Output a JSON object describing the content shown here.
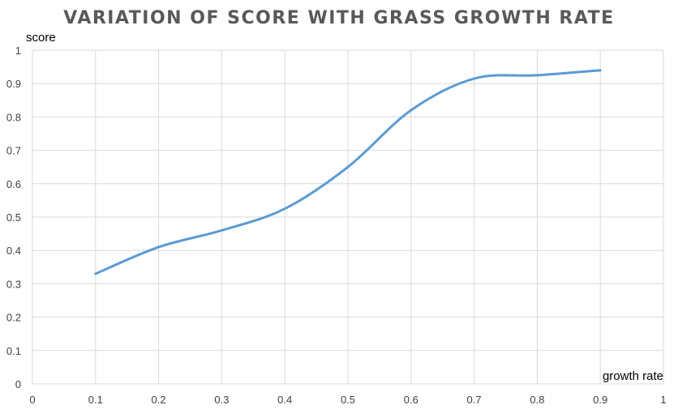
{
  "chart_data": {
    "type": "line",
    "title": "VARIATION OF SCORE WITH GRASS GROWTH RATE",
    "xlabel": "growth rate",
    "ylabel": "score",
    "xlim": [
      0,
      1
    ],
    "ylim": [
      0,
      1
    ],
    "x_ticks": [
      "0",
      "0.1",
      "0.2",
      "0.3",
      "0.4",
      "0.5",
      "0.6",
      "0.7",
      "0.8",
      "0.9",
      "1"
    ],
    "y_ticks": [
      "0",
      "0.1",
      "0.2",
      "0.3",
      "0.4",
      "0.5",
      "0.6",
      "0.7",
      "0.8",
      "0.9",
      "1"
    ],
    "grid": true,
    "series": [
      {
        "x": [
          0.1,
          0.2,
          0.3,
          0.4,
          0.5,
          0.6,
          0.7,
          0.8,
          0.9
        ],
        "values": [
          0.33,
          0.41,
          0.46,
          0.525,
          0.65,
          0.82,
          0.915,
          0.925,
          0.94
        ],
        "color": "#5b9bd5"
      }
    ]
  }
}
